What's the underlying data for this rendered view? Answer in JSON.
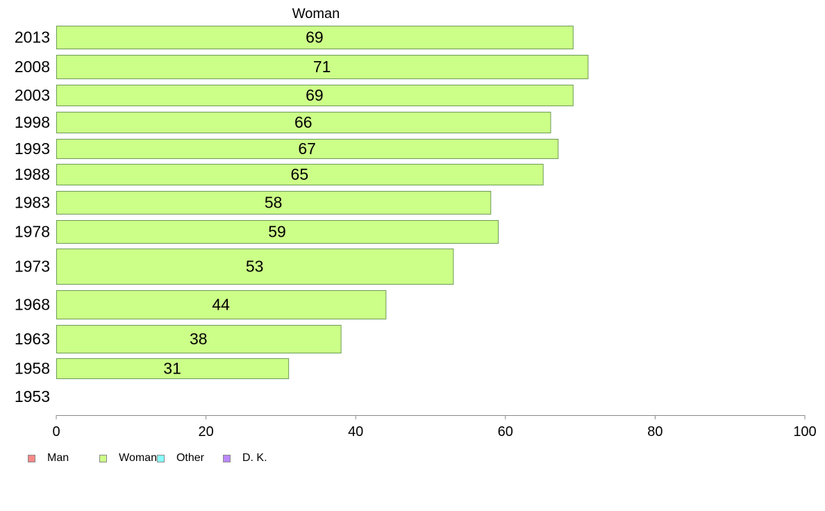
{
  "chart_data": {
    "type": "bar",
    "orientation": "horizontal",
    "title": "Woman",
    "categories": [
      "2013",
      "2008",
      "2003",
      "1998",
      "1993",
      "1988",
      "1983",
      "1978",
      "1973",
      "1968",
      "1963",
      "1958",
      "1953"
    ],
    "series": [
      {
        "name": "Woman",
        "values": [
          69,
          71,
          69,
          66,
          67,
          65,
          58,
          59,
          53,
          44,
          38,
          31,
          null
        ],
        "color": "#ccff88"
      }
    ],
    "xlim": [
      0,
      100
    ],
    "xticks": [
      "0",
      "20",
      "40",
      "60",
      "80",
      "100"
    ],
    "grid": false,
    "legend_position": "bottom-left",
    "legend": [
      {
        "label": "Man",
        "color": "#ff8888"
      },
      {
        "label": "Woman",
        "color": "#ccff88"
      },
      {
        "label": "Other",
        "color": "#88ffff"
      },
      {
        "label": "D. K.",
        "color": "#bb88ff"
      }
    ]
  }
}
